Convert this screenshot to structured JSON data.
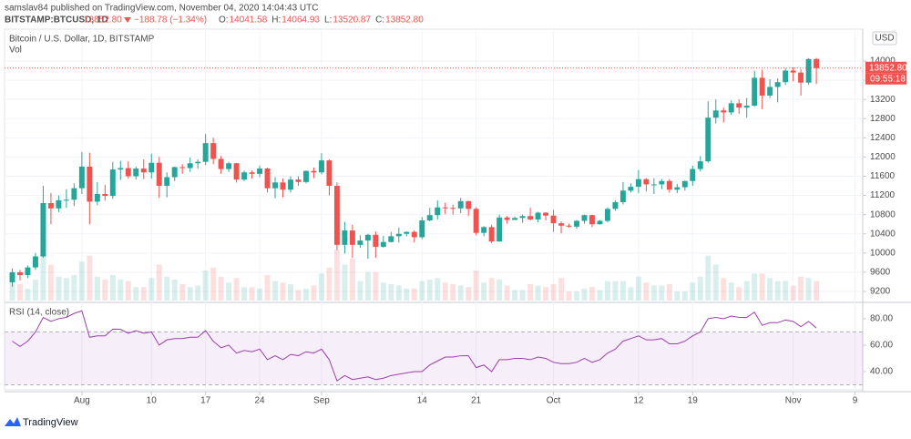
{
  "header": {
    "publisher": "samslav84 published on TradingView.com, November 04, 2020 14:04:43 UTC",
    "symbol": "BITSTAMP:BTCUSD, 1D",
    "last": "13852.80",
    "change": "−188.78 (−1.34%)",
    "ohlc": [
      {
        "label": "O:",
        "value": "14041.58"
      },
      {
        "label": "H:",
        "value": "14064.93"
      },
      {
        "label": "L:",
        "value": "13520.87"
      },
      {
        "label": "C:",
        "value": "13852.80"
      }
    ]
  },
  "chart_data": {
    "type": "candlestick",
    "title": "Bitcoin / U.S. Dollar, 1D, BITSTAMP",
    "y_axis_label": "USD",
    "last_price_label": "13852.80",
    "countdown": "09:55:18",
    "colors": {
      "up": "#26a69a",
      "down": "#ef5350"
    },
    "x": [
      "Jul 23",
      "Jul 24",
      "Jul 25",
      "Jul 26",
      "Jul 27",
      "Jul 28",
      "Jul 29",
      "Jul 30",
      "Jul 31",
      "Aug 1",
      "Aug 2",
      "Aug 3",
      "Aug 4",
      "Aug 5",
      "Aug 6",
      "Aug 7",
      "Aug 8",
      "Aug 9",
      "Aug 10",
      "Aug 11",
      "Aug 12",
      "Aug 13",
      "Aug 14",
      "Aug 15",
      "Aug 16",
      "Aug 17",
      "Aug 18",
      "Aug 19",
      "Aug 20",
      "Aug 21",
      "Aug 22",
      "Aug 23",
      "Aug 24",
      "Aug 25",
      "Aug 26",
      "Aug 27",
      "Aug 28",
      "Aug 29",
      "Aug 30",
      "Aug 31",
      "Sep 1",
      "Sep 2",
      "Sep 3",
      "Sep 4",
      "Sep 5",
      "Sep 6",
      "Sep 7",
      "Sep 8",
      "Sep 9",
      "Sep 10",
      "Sep 11",
      "Sep 12",
      "Sep 13",
      "Sep 14",
      "Sep 15",
      "Sep 16",
      "Sep 17",
      "Sep 18",
      "Sep 19",
      "Sep 20",
      "Sep 21",
      "Sep 22",
      "Sep 23",
      "Sep 24",
      "Sep 25",
      "Sep 26",
      "Sep 27",
      "Sep 28",
      "Sep 29",
      "Sep 30",
      "Oct 1",
      "Oct 2",
      "Oct 3",
      "Oct 4",
      "Oct 5",
      "Oct 6",
      "Oct 7",
      "Oct 8",
      "Oct 9",
      "Oct 10",
      "Oct 11",
      "Oct 12",
      "Oct 13",
      "Oct 14",
      "Oct 15",
      "Oct 16",
      "Oct 17",
      "Oct 18",
      "Oct 19",
      "Oct 20",
      "Oct 21",
      "Oct 22",
      "Oct 23",
      "Oct 24",
      "Oct 25",
      "Oct 26",
      "Oct 27",
      "Oct 28",
      "Oct 29",
      "Oct 30",
      "Oct 31",
      "Nov 1",
      "Nov 2",
      "Nov 3",
      "Nov 4"
    ],
    "open": [
      9390,
      9600,
      9540,
      9700,
      9930,
      11040,
      10930,
      11100,
      11110,
      11350,
      11800,
      11070,
      11230,
      11190,
      11740,
      11770,
      11600,
      11760,
      11680,
      11880,
      11400,
      11580,
      11790,
      11770,
      11870,
      11900,
      12290,
      11960,
      11750,
      11870,
      11530,
      11680,
      11650,
      11760,
      11350,
      11470,
      11320,
      11530,
      11480,
      11710,
      11680,
      11930,
      11400,
      10170,
      10470,
      10170,
      10260,
      10380,
      10130,
      10230,
      10350,
      10400,
      10440,
      10330,
      10680,
      10790,
      10950,
      10940,
      10930,
      11080,
      10920,
      10420,
      10540,
      10240,
      10740,
      10690,
      10730,
      10770,
      10700,
      10840,
      10780,
      10620,
      10570,
      10550,
      10670,
      10790,
      10600,
      10670,
      10920,
      11060,
      11300,
      11380,
      11540,
      11430,
      11430,
      11500,
      11320,
      11370,
      11500,
      11750,
      11910,
      12820,
      12970,
      12930,
      13120,
      13030,
      13070,
      13650,
      13280,
      13460,
      13560,
      13800,
      13760,
      13550,
      14041.58
    ],
    "high": [
      9680,
      9650,
      9740,
      10000,
      11400,
      11250,
      11200,
      11330,
      11450,
      12100,
      12090,
      11480,
      11420,
      11900,
      11920,
      11910,
      11800,
      11950,
      12070,
      12000,
      11680,
      11800,
      11850,
      11990,
      11950,
      12480,
      12400,
      12020,
      11900,
      11880,
      11720,
      11720,
      11820,
      11780,
      11580,
      11550,
      11600,
      11600,
      11720,
      11780,
      12080,
      11950,
      11470,
      10650,
      10590,
      10370,
      10400,
      10450,
      10360,
      10440,
      10530,
      10450,
      10470,
      10750,
      10940,
      11100,
      11050,
      11010,
      11150,
      11090,
      10950,
      10560,
      10590,
      10800,
      10770,
      10760,
      10800,
      10940,
      10860,
      10850,
      10900,
      10660,
      10610,
      10690,
      10800,
      10800,
      10690,
      10950,
      11100,
      11480,
      11450,
      11730,
      11560,
      11560,
      11540,
      11540,
      11440,
      11510,
      11820,
      12020,
      13160,
      13200,
      13030,
      13180,
      13200,
      13230,
      13800,
      13820,
      13620,
      13640,
      13850,
      13870,
      13830,
      14060,
      14064.93
    ],
    "low": [
      9300,
      9430,
      9480,
      9650,
      9900,
      10600,
      10850,
      10940,
      10980,
      11230,
      10600,
      11000,
      11090,
      11130,
      11520,
      11550,
      11530,
      11540,
      11550,
      11150,
      11160,
      11500,
      11650,
      11690,
      11760,
      11830,
      11850,
      11650,
      11690,
      11470,
      11500,
      11550,
      11580,
      11260,
      11140,
      11160,
      11260,
      11400,
      11450,
      11560,
      11640,
      11200,
      10060,
      9990,
      9900,
      10110,
      9880,
      9900,
      10110,
      10220,
      10220,
      10350,
      10220,
      10290,
      10660,
      10700,
      10810,
      10800,
      10830,
      10770,
      10370,
      10350,
      10200,
      10240,
      10610,
      10690,
      10630,
      10680,
      10640,
      10680,
      10440,
      10410,
      10530,
      10510,
      10610,
      10540,
      10590,
      10640,
      10880,
      11010,
      11260,
      11250,
      11280,
      11230,
      11330,
      11260,
      11250,
      11300,
      11400,
      11700,
      11880,
      12700,
      12720,
      12880,
      12900,
      12820,
      13050,
      13000,
      13230,
      13140,
      13500,
      13580,
      13280,
      13510,
      13520.87
    ],
    "close": [
      9600,
      9540,
      9700,
      9930,
      11040,
      10930,
      11100,
      11110,
      11350,
      11800,
      11070,
      11230,
      11190,
      11740,
      11770,
      11600,
      11760,
      11680,
      11880,
      11400,
      11580,
      11790,
      11770,
      11870,
      11900,
      12290,
      11960,
      11750,
      11870,
      11530,
      11680,
      11650,
      11760,
      11350,
      11470,
      11320,
      11530,
      11480,
      11710,
      11680,
      11930,
      11400,
      10170,
      10470,
      10170,
      10260,
      10380,
      10130,
      10230,
      10350,
      10400,
      10440,
      10330,
      10680,
      10790,
      10950,
      10940,
      10930,
      11080,
      10920,
      10420,
      10540,
      10240,
      10740,
      10690,
      10730,
      10770,
      10700,
      10840,
      10780,
      10620,
      10570,
      10550,
      10670,
      10790,
      10600,
      10670,
      10920,
      11060,
      11300,
      11380,
      11540,
      11430,
      11430,
      11500,
      11320,
      11370,
      11500,
      11750,
      11910,
      12820,
      12970,
      12930,
      13120,
      13030,
      13070,
      13650,
      13280,
      13460,
      13560,
      13800,
      13760,
      13550,
      14041.58,
      13852.8
    ],
    "xlim": [
      "Jul 22",
      "Nov 10"
    ],
    "xticks": [
      {
        "value": "Aug 1",
        "label": "Aug"
      },
      {
        "value": "Aug 10",
        "label": "10"
      },
      {
        "value": "Aug 17",
        "label": "17"
      },
      {
        "value": "Aug 24",
        "label": "24"
      },
      {
        "value": "Sep 1",
        "label": "Sep"
      },
      {
        "value": "Sep 14",
        "label": "14"
      },
      {
        "value": "Sep 21",
        "label": "21"
      },
      {
        "value": "Oct 1",
        "label": "Oct"
      },
      {
        "value": "Oct 12",
        "label": "12"
      },
      {
        "value": "Oct 19",
        "label": "19"
      },
      {
        "value": "Nov 1",
        "label": "Nov"
      },
      {
        "value": "Nov 9",
        "label": "9"
      }
    ],
    "ylim": [
      9010,
      14664
    ],
    "yticks": [
      9200,
      9600,
      10000,
      10400,
      10800,
      11200,
      11600,
      12000,
      12400,
      12800,
      13200,
      13600,
      14000
    ],
    "grid": true,
    "volume": {
      "name": "Vol",
      "values": [
        6000,
        5500,
        4000,
        7000,
        16000,
        12000,
        8000,
        7500,
        8500,
        13000,
        15000,
        8000,
        7000,
        8500,
        7000,
        6500,
        4500,
        4500,
        7500,
        12000,
        8000,
        7000,
        5500,
        4500,
        5000,
        10000,
        11000,
        8000,
        6000,
        7500,
        4500,
        4500,
        4000,
        8500,
        6500,
        6000,
        5500,
        3500,
        4000,
        5000,
        9000,
        11000,
        17000,
        12000,
        14000,
        6500,
        9500,
        9500,
        6000,
        5500,
        5000,
        4000,
        4000,
        6500,
        7000,
        7500,
        6000,
        5500,
        5000,
        4500,
        10000,
        6000,
        7500,
        7000,
        5000,
        3500,
        3500,
        5500,
        5000,
        4500,
        5500,
        7500,
        3000,
        3000,
        4000,
        4500,
        3500,
        6500,
        6500,
        6500,
        4500,
        8000,
        6000,
        5000,
        5000,
        5500,
        3000,
        3000,
        6000,
        8000,
        15000,
        12000,
        7500,
        6000,
        4500,
        6500,
        9000,
        9000,
        7500,
        6500,
        6500,
        5000,
        8000,
        7500,
        6500
      ]
    },
    "rsi": {
      "name": "RSI (14, close)",
      "color": "#9c3fb0",
      "band_color": "rgba(156,63,176,0.09)",
      "bands": [
        30,
        70
      ],
      "ylim": [
        26.2,
        90.3
      ],
      "yticks": [
        {
          "value": 40,
          "label": "40.00"
        },
        {
          "value": 60,
          "label": "60.00"
        },
        {
          "value": 80,
          "label": "80.00"
        }
      ],
      "values": [
        63,
        59,
        63,
        70,
        81,
        78,
        80,
        81,
        84,
        86,
        66,
        67,
        67,
        72,
        72,
        69,
        71,
        69,
        70,
        60,
        64,
        65,
        65,
        66,
        66,
        71,
        63,
        58,
        60,
        54,
        56,
        55,
        57,
        49,
        52,
        49,
        53,
        52,
        55,
        54,
        57,
        49,
        33,
        37,
        34,
        35,
        36,
        34,
        35,
        37,
        38,
        39,
        40,
        40,
        45,
        48,
        51,
        51,
        52,
        52,
        43,
        45,
        40,
        49,
        49,
        50,
        50,
        49,
        51,
        50,
        47,
        46,
        46,
        47,
        50,
        47,
        49,
        54,
        57,
        63,
        65,
        67,
        64,
        64,
        65,
        61,
        61,
        63,
        67,
        70,
        80,
        81,
        80,
        82,
        81,
        81,
        85,
        75,
        77,
        77,
        79,
        78,
        74,
        78,
        73
      ]
    }
  },
  "footer": {
    "brand": "TradingView"
  }
}
